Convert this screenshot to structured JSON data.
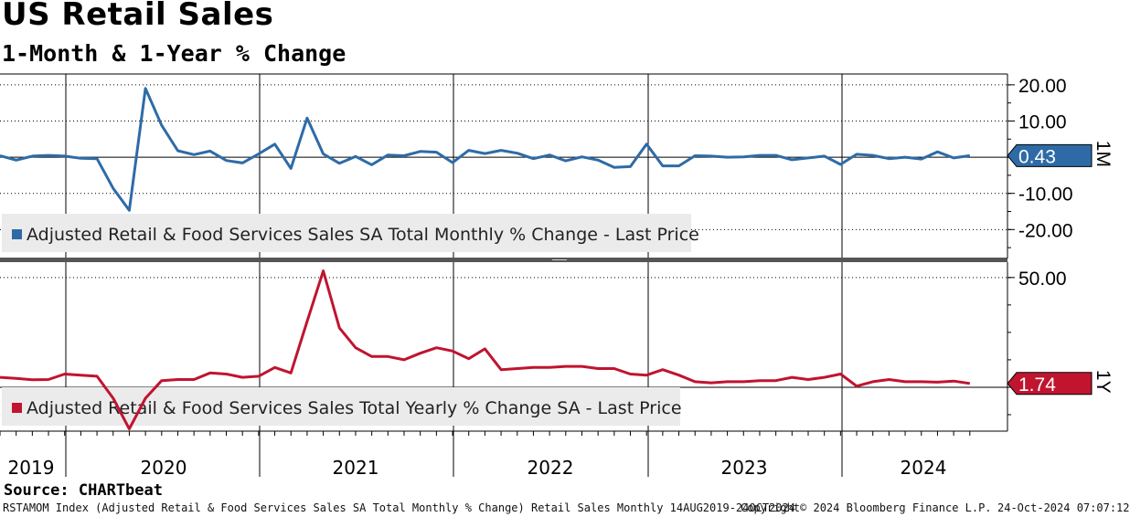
{
  "header": {
    "title": "US Retail Sales",
    "subtitle": "1-Month & 1-Year % Change"
  },
  "source": "Source: CHARTbeat",
  "footer": {
    "description": "RSTAMOM Index (Adjusted Retail & Food Services Sales SA Total Monthly % Change) Retail Sales  Monthly 14AUG2019-24OCT2024",
    "copyright": "Copyright© 2024 Bloomberg Finance L.P.",
    "timestamp": "24-Oct-2024 07:07:12"
  },
  "colors": {
    "monthly": "#2e6ba6",
    "yearly": "#c0142f"
  },
  "chart_data": [
    {
      "type": "line",
      "panel": "1M",
      "series_name": "Adjusted Retail & Food Services Sales SA Total Monthly % Change - Last Price",
      "last_value_label": "0.43",
      "ylim": [
        -28,
        23
      ],
      "y_ticks": [
        20,
        10,
        -10,
        -20
      ],
      "y_tick_labels": [
        "20.00",
        "10.00",
        "-10.00",
        "-20.00"
      ],
      "x_start": "2019-08",
      "values": [
        0.4,
        -0.8,
        0.3,
        0.5,
        0.3,
        -0.3,
        -0.4,
        -8.6,
        -14.7,
        19.0,
        8.8,
        1.8,
        0.7,
        1.7,
        -0.9,
        -1.6,
        0.9,
        3.6,
        -3.1,
        10.8,
        0.9,
        -1.7,
        0.2,
        -2.1,
        0.6,
        0.4,
        1.6,
        1.4,
        -1.5,
        1.9,
        1.0,
        1.9,
        1.1,
        -0.4,
        0.6,
        -1.0,
        0.1,
        -0.8,
        -2.8,
        -2.6,
        3.6,
        -2.4,
        -2.4,
        0.4,
        0.3,
        0.0,
        0.1,
        0.5,
        0.5,
        -0.7,
        -0.2,
        0.3,
        -2.0,
        0.8,
        0.5,
        -0.4,
        0.0,
        -0.5,
        1.5,
        -0.2,
        0.43
      ],
      "x_labels": [
        "2019",
        "2020",
        "2021",
        "2022",
        "2023",
        "2024"
      ]
    },
    {
      "type": "line",
      "panel": "1Y",
      "series_name": "Adjusted Retail & Food Services Sales Total Yearly % Change SA - Last Price",
      "last_value_label": "1.74",
      "ylim": [
        -20,
        57
      ],
      "y_ticks": [
        50
      ],
      "y_tick_labels": [
        "50.00"
      ],
      "x_start": "2019-08",
      "values": [
        4.5,
        4.0,
        3.4,
        3.5,
        6.0,
        5.5,
        5.0,
        -5.0,
        -19.0,
        -5.0,
        3.0,
        3.5,
        3.5,
        6.5,
        6.0,
        4.5,
        5.0,
        9.0,
        6.5,
        30.0,
        53.0,
        27.0,
        18.0,
        14.0,
        14.0,
        12.5,
        15.5,
        18.0,
        16.5,
        13.0,
        17.5,
        8.0,
        8.5,
        9.0,
        9.0,
        9.5,
        9.5,
        8.5,
        8.5,
        6.0,
        5.5,
        8.0,
        5.5,
        2.5,
        2.0,
        2.5,
        2.5,
        3.0,
        3.0,
        4.5,
        3.5,
        4.5,
        6.0,
        0.5,
        2.5,
        3.5,
        2.5,
        2.5,
        2.3,
        2.8,
        1.74
      ],
      "x_labels": [
        "2019",
        "2020",
        "2021",
        "2022",
        "2023",
        "2024"
      ]
    }
  ]
}
